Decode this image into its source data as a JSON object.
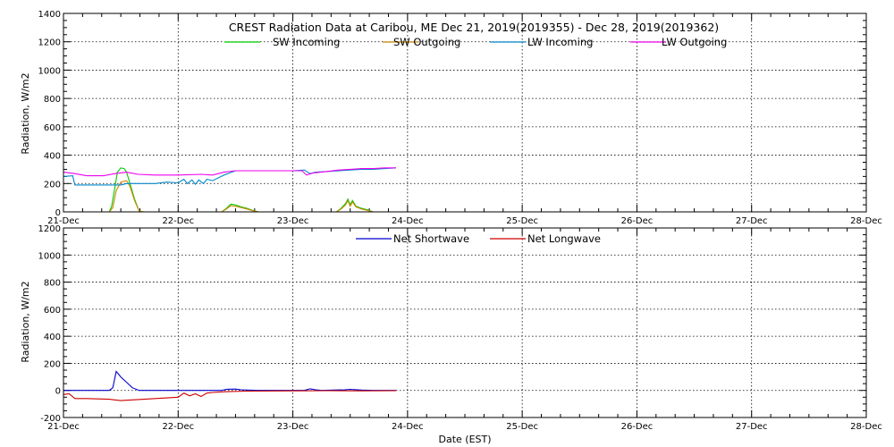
{
  "chart_data": [
    {
      "type": "line",
      "title": "CREST Radiation Data at Caribou, ME   Dec 21, 2019(2019355) - Dec 28, 2019(2019362)",
      "xlabel": "",
      "ylabel": "Radiation, W/m2",
      "xlim": [
        "21-Dec",
        "28-Dec"
      ],
      "ylim": [
        0,
        1400
      ],
      "yticks": [
        0,
        200,
        400,
        600,
        800,
        1000,
        1200,
        1400
      ],
      "xticks": [
        "21-Dec",
        "22-Dec",
        "23-Dec",
        "24-Dec",
        "25-Dec",
        "26-Dec",
        "27-Dec",
        "28-Dec"
      ],
      "grid": true,
      "legend": "top-center",
      "x_unit": "day offset from 21-Dec 00:00 EST",
      "series": [
        {
          "name": "SW Incoming",
          "color": "#00cc00",
          "points": [
            [
              0,
              0
            ],
            [
              0.4,
              0
            ],
            [
              0.42,
              40
            ],
            [
              0.45,
              180
            ],
            [
              0.47,
              280
            ],
            [
              0.5,
              310
            ],
            [
              0.53,
              305
            ],
            [
              0.55,
              280
            ],
            [
              0.58,
              200
            ],
            [
              0.62,
              90
            ],
            [
              0.66,
              5
            ],
            [
              0.7,
              0
            ],
            [
              1.38,
              0
            ],
            [
              1.42,
              25
            ],
            [
              1.46,
              55
            ],
            [
              1.5,
              50
            ],
            [
              1.55,
              35
            ],
            [
              1.6,
              25
            ],
            [
              1.65,
              10
            ],
            [
              1.7,
              0
            ],
            [
              2.38,
              0
            ],
            [
              2.42,
              25
            ],
            [
              2.46,
              60
            ],
            [
              2.48,
              90
            ],
            [
              2.5,
              50
            ],
            [
              2.52,
              80
            ],
            [
              2.55,
              40
            ],
            [
              2.6,
              25
            ],
            [
              2.65,
              15
            ],
            [
              2.7,
              0
            ],
            [
              2.9,
              0
            ]
          ]
        },
        {
          "name": "SW Outgoing",
          "color": "#cc8800",
          "points": [
            [
              0,
              0
            ],
            [
              0.4,
              0
            ],
            [
              0.43,
              30
            ],
            [
              0.46,
              150
            ],
            [
              0.5,
              210
            ],
            [
              0.55,
              220
            ],
            [
              0.58,
              180
            ],
            [
              0.62,
              80
            ],
            [
              0.66,
              5
            ],
            [
              0.7,
              0
            ],
            [
              1.38,
              0
            ],
            [
              1.42,
              20
            ],
            [
              1.46,
              45
            ],
            [
              1.5,
              40
            ],
            [
              1.55,
              30
            ],
            [
              1.6,
              20
            ],
            [
              1.65,
              8
            ],
            [
              1.7,
              0
            ],
            [
              2.38,
              0
            ],
            [
              2.42,
              20
            ],
            [
              2.46,
              50
            ],
            [
              2.48,
              80
            ],
            [
              2.5,
              40
            ],
            [
              2.52,
              70
            ],
            [
              2.55,
              35
            ],
            [
              2.6,
              20
            ],
            [
              2.65,
              10
            ],
            [
              2.7,
              0
            ],
            [
              2.9,
              0
            ]
          ]
        },
        {
          "name": "LW Incoming",
          "color": "#0088cc",
          "points": [
            [
              0,
              250
            ],
            [
              0.08,
              255
            ],
            [
              0.1,
              190
            ],
            [
              0.3,
              190
            ],
            [
              0.5,
              190
            ],
            [
              0.55,
              200
            ],
            [
              0.6,
              200
            ],
            [
              0.8,
              200
            ],
            [
              0.9,
              210
            ],
            [
              1.0,
              205
            ],
            [
              1.05,
              230
            ],
            [
              1.08,
              200
            ],
            [
              1.12,
              225
            ],
            [
              1.15,
              195
            ],
            [
              1.18,
              225
            ],
            [
              1.22,
              200
            ],
            [
              1.25,
              230
            ],
            [
              1.3,
              220
            ],
            [
              1.4,
              260
            ],
            [
              1.5,
              290
            ],
            [
              2.0,
              290
            ],
            [
              2.1,
              295
            ],
            [
              2.15,
              270
            ],
            [
              2.2,
              280
            ],
            [
              2.3,
              285
            ],
            [
              2.5,
              295
            ],
            [
              2.6,
              300
            ],
            [
              2.7,
              300
            ],
            [
              2.8,
              305
            ],
            [
              2.9,
              310
            ]
          ]
        },
        {
          "name": "LW Outgoing",
          "color": "#ee00ee",
          "points": [
            [
              0,
              280
            ],
            [
              0.1,
              270
            ],
            [
              0.2,
              255
            ],
            [
              0.35,
              255
            ],
            [
              0.45,
              270
            ],
            [
              0.55,
              280
            ],
            [
              0.65,
              265
            ],
            [
              0.8,
              260
            ],
            [
              1.0,
              260
            ],
            [
              1.2,
              265
            ],
            [
              1.3,
              260
            ],
            [
              1.4,
              280
            ],
            [
              1.5,
              290
            ],
            [
              2.0,
              290
            ],
            [
              2.08,
              290
            ],
            [
              2.12,
              260
            ],
            [
              2.18,
              275
            ],
            [
              2.3,
              285
            ],
            [
              2.4,
              295
            ],
            [
              2.5,
              300
            ],
            [
              2.6,
              305
            ],
            [
              2.7,
              305
            ],
            [
              2.8,
              310
            ],
            [
              2.9,
              310
            ]
          ]
        }
      ]
    },
    {
      "type": "line",
      "title": "",
      "xlabel": "Date (EST)",
      "ylabel": "Radiation, W/m2",
      "xlim": [
        "21-Dec",
        "28-Dec"
      ],
      "ylim": [
        -200,
        1200
      ],
      "yticks": [
        -200,
        0,
        200,
        400,
        600,
        800,
        1000,
        1200
      ],
      "xticks": [
        "21-Dec",
        "22-Dec",
        "23-Dec",
        "24-Dec",
        "25-Dec",
        "26-Dec",
        "27-Dec",
        "28-Dec"
      ],
      "grid": true,
      "legend": "top-center",
      "x_unit": "day offset from 21-Dec 00:00 EST",
      "series": [
        {
          "name": "Net Shortwave",
          "color": "#0000cc",
          "points": [
            [
              0,
              0
            ],
            [
              0.4,
              0
            ],
            [
              0.43,
              20
            ],
            [
              0.46,
              140
            ],
            [
              0.48,
              120
            ],
            [
              0.5,
              100
            ],
            [
              0.55,
              60
            ],
            [
              0.6,
              20
            ],
            [
              0.66,
              0
            ],
            [
              1.38,
              0
            ],
            [
              1.42,
              8
            ],
            [
              1.5,
              10
            ],
            [
              1.55,
              5
            ],
            [
              1.7,
              0
            ],
            [
              2.1,
              0
            ],
            [
              2.15,
              12
            ],
            [
              2.2,
              5
            ],
            [
              2.25,
              0
            ],
            [
              2.45,
              5
            ],
            [
              2.5,
              8
            ],
            [
              2.6,
              3
            ],
            [
              2.7,
              0
            ],
            [
              2.9,
              0
            ]
          ]
        },
        {
          "name": "Net Longwave",
          "color": "#cc0000",
          "points": [
            [
              0,
              -30
            ],
            [
              0.05,
              -25
            ],
            [
              0.1,
              -60
            ],
            [
              0.2,
              -60
            ],
            [
              0.4,
              -65
            ],
            [
              0.5,
              -75
            ],
            [
              0.6,
              -70
            ],
            [
              0.8,
              -60
            ],
            [
              1.0,
              -50
            ],
            [
              1.05,
              -20
            ],
            [
              1.1,
              -40
            ],
            [
              1.15,
              -25
            ],
            [
              1.2,
              -45
            ],
            [
              1.25,
              -20
            ],
            [
              1.3,
              -15
            ],
            [
              1.4,
              -10
            ],
            [
              1.6,
              -5
            ],
            [
              2.0,
              -3
            ],
            [
              2.3,
              -2
            ],
            [
              2.6,
              -3
            ],
            [
              2.9,
              -2
            ]
          ]
        }
      ]
    }
  ]
}
